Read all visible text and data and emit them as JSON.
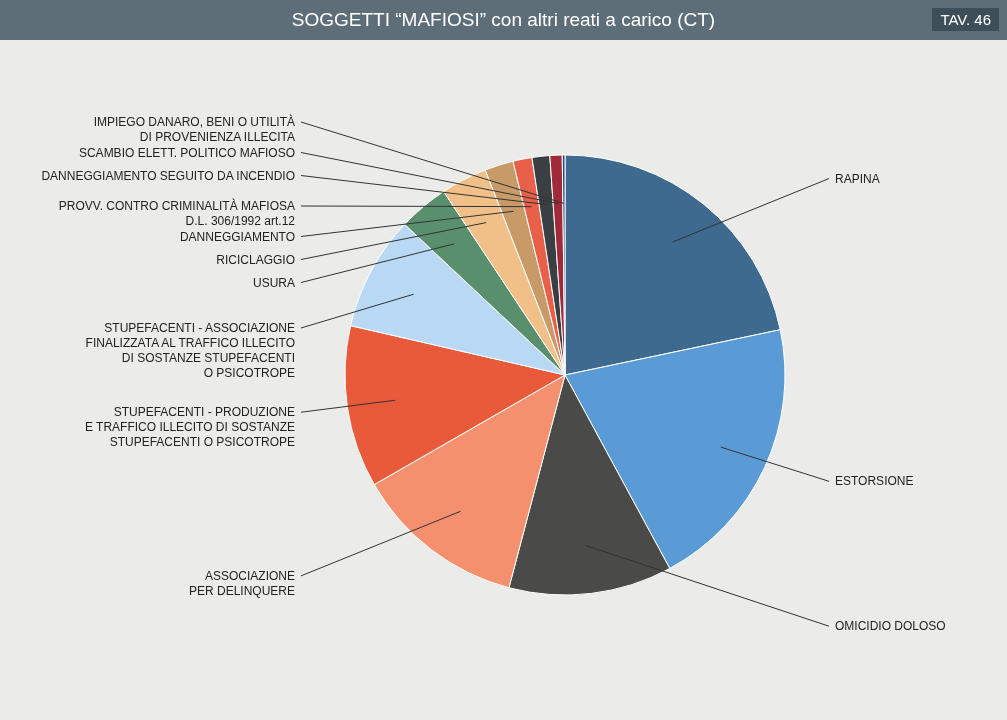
{
  "chart_data": {
    "type": "pie",
    "title": "SOGGETTI “MAFIOSI” con altri reati a carico (CT)",
    "annotations": [
      "TAV. 46"
    ],
    "categories": [
      "RAPINA",
      "ESTORSIONE",
      "OMICIDIO DOLOSO",
      "ASSOCIAZIONE\nPER DELINQUERE",
      "STUPEFACENTI - PRODUZIONE\nE TRAFFICO ILLECITO DI SOSTANZE\nSTUPEFACENTI O PSICOTROPE",
      "STUPEFACENTI - ASSOCIAZIONE\nFINALIZZATA AL TRAFFICO ILLECITO\nDI SOSTANZE STUPEFACENTI\nO PSICOTROPE",
      "USURA",
      "RICICLAGGIO",
      "DANNEGGIAMENTO",
      "PROVV. CONTRO CRIMINALITÀ MAFIOSA\nD.L. 306/1992 art.12",
      "DANNEGGIAMENTO SEGUITO DA INCENDIO",
      "SCAMBIO ELETT. POLITICO MAFIOSO",
      "IMPIEGO DANARO, BENI O UTILITÀ\nDI PROVENIENZA ILLECITA"
    ],
    "values": [
      21.7,
      20.4,
      12.0,
      12.6,
      11.9,
      8.4,
      3.7,
      3.4,
      2.1,
      1.4,
      1.3,
      0.9,
      0.2
    ],
    "colors": [
      "#3d6a8e",
      "#5b9bd5",
      "#4a4a48",
      "#f4906e",
      "#e85a3a",
      "#b8d8f4",
      "#5a8f6e",
      "#f0c088",
      "#c89a68",
      "#e8604a",
      "#3a3f44",
      "#a02a3a",
      "#2a4a7a"
    ]
  }
}
